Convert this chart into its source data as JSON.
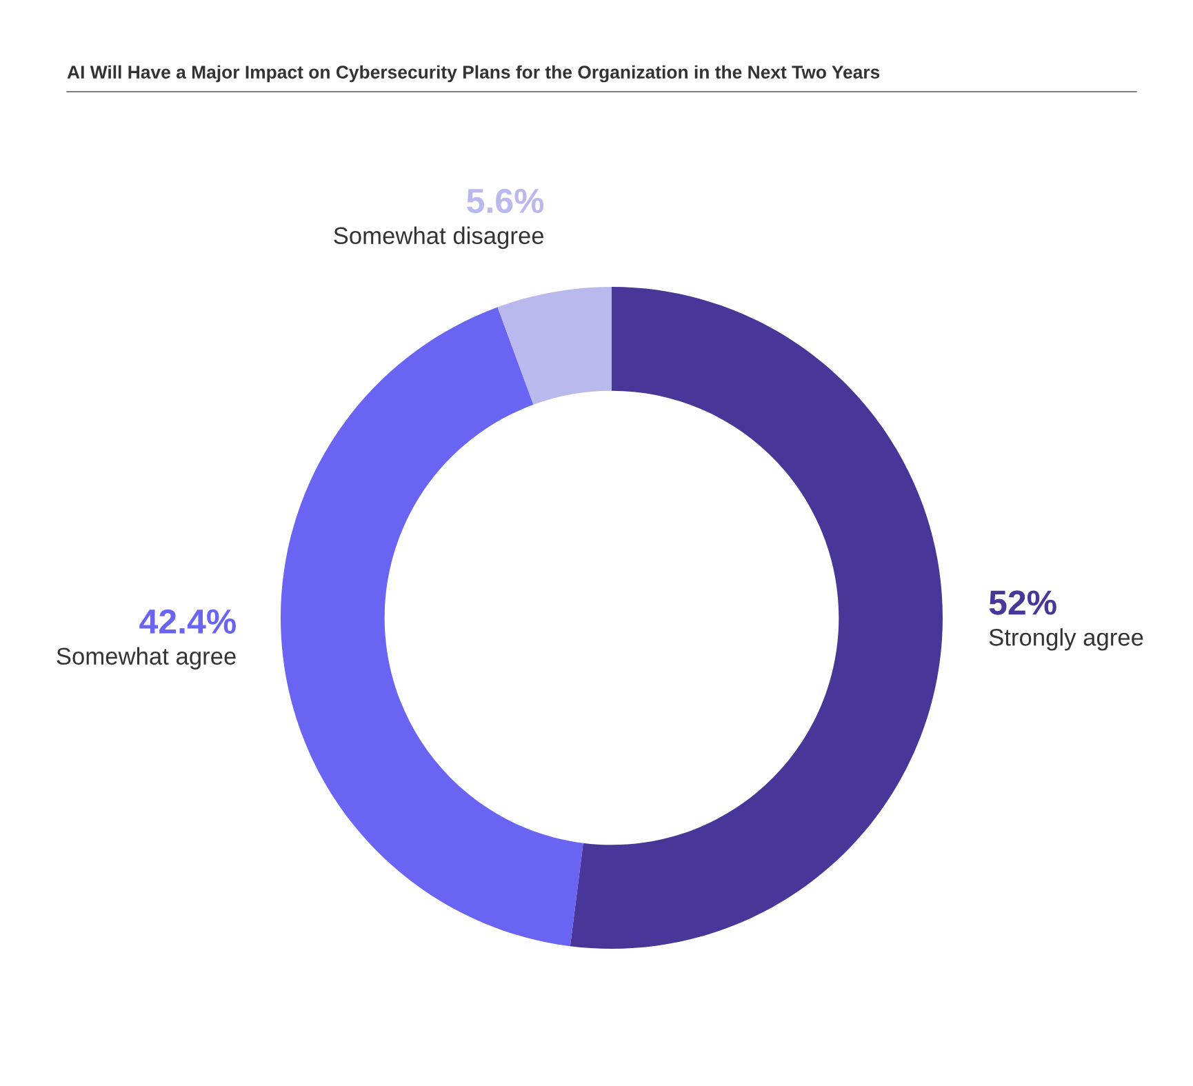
{
  "chart_data": {
    "type": "donut",
    "title": "AI Will Have a Major Impact on Cybersecurity Plans for the Organization in the Next Two Years",
    "categories": [
      "Strongly agree",
      "Somewhat agree",
      "Somewhat disagree"
    ],
    "values": [
      52,
      42.4,
      5.6
    ],
    "colors": [
      "#483698",
      "#6964f2",
      "#b9b9ee"
    ],
    "value_labels": [
      "52%",
      "42.4%",
      "5.6%"
    ],
    "legend": false
  }
}
